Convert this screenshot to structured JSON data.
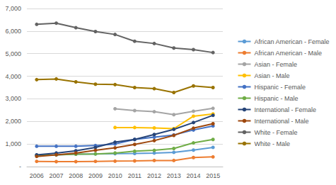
{
  "chart_data": {
    "type": "line",
    "categories": [
      "2006",
      "2007",
      "2008",
      "2009",
      "2010",
      "2011",
      "2012",
      "2013",
      "2014",
      "2015"
    ],
    "ylim": [
      0,
      7000
    ],
    "yticks": [
      {
        "value": 0,
        "label": "-"
      },
      {
        "value": 1000,
        "label": "1,000"
      },
      {
        "value": 2000,
        "label": "2,000"
      },
      {
        "value": 3000,
        "label": "3,000"
      },
      {
        "value": 4000,
        "label": "4,000"
      },
      {
        "value": 5000,
        "label": "5,000"
      },
      {
        "value": 6000,
        "label": "6,000"
      },
      {
        "value": 7000,
        "label": "7,000"
      }
    ],
    "grid": true,
    "legend": "right",
    "marker": "circle",
    "series": [
      {
        "name": "African American - Female",
        "color": "#5B9BD5",
        "values": [
          500,
          520,
          550,
          560,
          570,
          580,
          600,
          630,
          730,
          850
        ]
      },
      {
        "name": "African American - Male",
        "color": "#ED7D31",
        "values": [
          230,
          220,
          220,
          230,
          240,
          250,
          270,
          270,
          400,
          430
        ]
      },
      {
        "name": "Asian - Female",
        "color": "#A5A5A5",
        "values": [
          null,
          null,
          null,
          null,
          2560,
          2480,
          2430,
          2300,
          2450,
          2580
        ]
      },
      {
        "name": "Asian - Male",
        "color": "#FFC000",
        "values": [
          null,
          null,
          null,
          null,
          1730,
          1730,
          1710,
          1680,
          2230,
          2330
        ]
      },
      {
        "name": "Hispanic - Female",
        "color": "#4472C4",
        "values": [
          900,
          900,
          900,
          930,
          1000,
          1200,
          1300,
          1400,
          1620,
          1800
        ]
      },
      {
        "name": "Hispanic - Male",
        "color": "#70AD47",
        "values": [
          500,
          520,
          550,
          560,
          600,
          680,
          720,
          800,
          1050,
          1200
        ]
      },
      {
        "name": "International - Female",
        "color": "#264478",
        "values": [
          520,
          600,
          700,
          850,
          1080,
          1200,
          1420,
          1650,
          1950,
          2270
        ]
      },
      {
        "name": "International - Male",
        "color": "#9E480E",
        "values": [
          450,
          520,
          600,
          720,
          830,
          980,
          1150,
          1380,
          1700,
          1900
        ]
      },
      {
        "name": "White - Female",
        "color": "#636363",
        "values": [
          6300,
          6350,
          6150,
          5980,
          5850,
          5550,
          5450,
          5250,
          5180,
          5050
        ]
      },
      {
        "name": "White - Male",
        "color": "#997300",
        "values": [
          3850,
          3880,
          3750,
          3650,
          3630,
          3500,
          3450,
          3280,
          3570,
          3500
        ]
      }
    ]
  }
}
